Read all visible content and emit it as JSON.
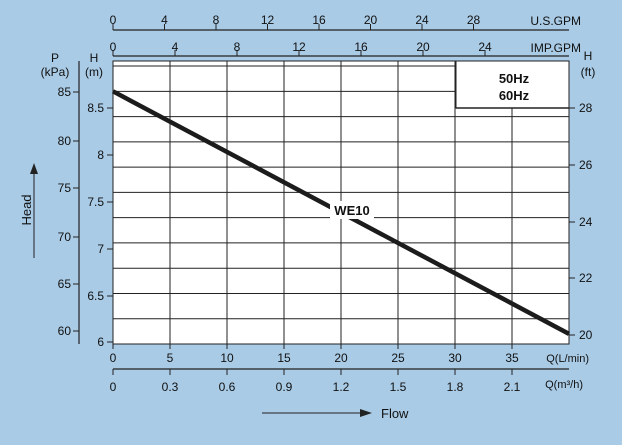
{
  "chart_data": {
    "type": "line",
    "title": "",
    "legend": [
      "50Hz",
      "60Hz"
    ],
    "series": [
      {
        "name": "WE10",
        "x": [
          0,
          40
        ],
        "y": [
          8.5,
          6.1
        ]
      }
    ],
    "x_axis": {
      "label": "Q(L/min)",
      "range": [
        0,
        40
      ],
      "ticks": [
        0,
        5,
        10,
        15,
        20,
        25,
        30,
        35
      ]
    },
    "x_axis_m3h": {
      "label": "Q(m³/h)",
      "ticks": [
        "0",
        "0.3",
        "0.6",
        "0.9",
        "1.2",
        "1.5",
        "1.8",
        "2.1"
      ]
    },
    "x_axis_usgpm": {
      "label": "U.S.GPM",
      "ticks": [
        "0",
        "4",
        "8",
        "12",
        "16",
        "20",
        "24",
        "28"
      ]
    },
    "x_axis_impgpm": {
      "label": "IMP.GPM",
      "ticks": [
        "0",
        "4",
        "8",
        "12",
        "16",
        "20",
        "24"
      ]
    },
    "y_axis_m": {
      "label_top": "H",
      "unit": "(m)",
      "range": [
        6,
        8.8
      ],
      "ticks": [
        "6",
        "6.5",
        "7",
        "7.5",
        "8",
        "8.5"
      ]
    },
    "y_axis_kpa": {
      "label_top": "P",
      "unit": "(kPa)",
      "ticks": [
        "60",
        "65",
        "70",
        "75",
        "80",
        "85"
      ]
    },
    "y_axis_ft": {
      "label_top": "H",
      "unit": "(ft)",
      "ticks": [
        "20",
        "22",
        "24",
        "26",
        "28"
      ]
    },
    "head_label": "Head",
    "flow_label": "Flow",
    "grid": true,
    "colors": {
      "background": "#a9cbe6",
      "plot": "#ffffff",
      "line": "#1c1c1c"
    }
  }
}
